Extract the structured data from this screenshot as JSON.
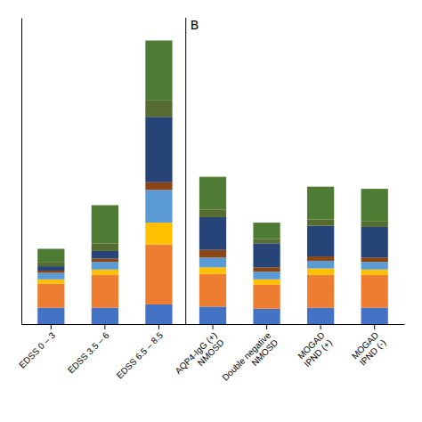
{
  "chart_data": {
    "type": "bar",
    "stacked": true,
    "categories": [
      "EDSS 0 – 3",
      "EDSS 3.5 – 6",
      "EDSS 6.5 – 8.5",
      "AQP4-IgG (+)\nNMOSD",
      "Double negative\nNMOSD",
      "MOGAD\nIPND (+)",
      "MOGAD\nIPND (-)"
    ],
    "series": [
      {
        "color": "#4472c4",
        "values": [
          1500,
          1500,
          1800,
          1600,
          1400,
          1500,
          1500
        ]
      },
      {
        "color": "#ed7d31",
        "values": [
          2200,
          3000,
          5500,
          3000,
          2200,
          3000,
          3000
        ]
      },
      {
        "color": "#ffc000",
        "values": [
          400,
          500,
          2000,
          600,
          500,
          600,
          500
        ]
      },
      {
        "color": "#5b9bd5",
        "values": [
          600,
          700,
          3000,
          900,
          700,
          700,
          700
        ]
      },
      {
        "color": "#8b4513",
        "values": [
          200,
          300,
          700,
          700,
          400,
          400,
          400
        ]
      },
      {
        "color": "#264478",
        "values": [
          400,
          700,
          6000,
          3000,
          2200,
          2800,
          2800
        ]
      },
      {
        "color": "#556b2f",
        "values": [
          400,
          700,
          1500,
          700,
          400,
          600,
          500
        ]
      },
      {
        "color": "#4e7c34",
        "values": [
          1200,
          3500,
          5500,
          3000,
          1500,
          3000,
          3000
        ]
      }
    ],
    "ylim": [
      0,
      28080
    ],
    "yticks": [],
    "tick_labels": "x",
    "grid": false,
    "annotations": [
      {
        "text": "B",
        "x": 2.5
      }
    ]
  }
}
